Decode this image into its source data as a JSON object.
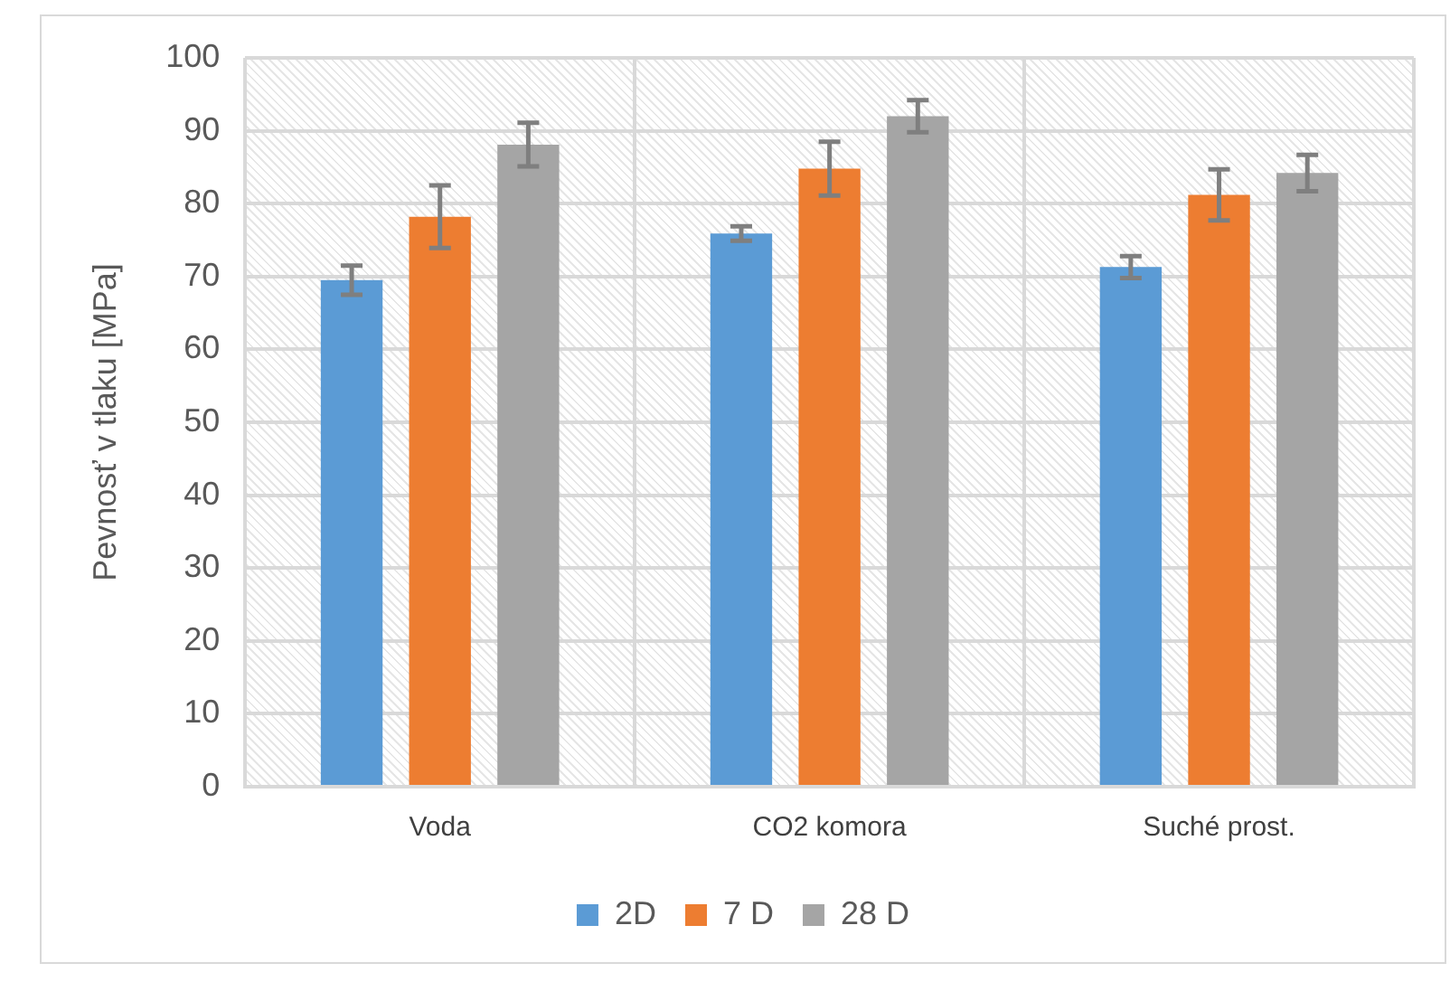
{
  "chart_data": {
    "type": "bar",
    "ylabel": "Pevnosť v tlaku [MPa]",
    "categories": [
      "Voda",
      "CO2 komora",
      "Suché prost."
    ],
    "series": [
      {
        "name": "2D",
        "color": "#5b9bd5",
        "values": [
          69.5,
          75.9,
          71.3
        ],
        "errors": [
          2,
          1,
          1.5
        ]
      },
      {
        "name": "7 D",
        "color": "#ed7d31",
        "values": [
          78.2,
          84.8,
          81.2
        ],
        "errors": [
          4.3,
          3.7,
          3.5
        ]
      },
      {
        "name": "28 D",
        "color": "#a5a5a5",
        "values": [
          88.1,
          92,
          84.2
        ],
        "errors": [
          3,
          2.2,
          2.5
        ]
      }
    ],
    "ylim": [
      0,
      100
    ],
    "yticks": [
      0,
      10,
      20,
      30,
      40,
      50,
      60,
      70,
      80,
      90,
      100
    ],
    "grid": true,
    "legend": "bottom"
  }
}
